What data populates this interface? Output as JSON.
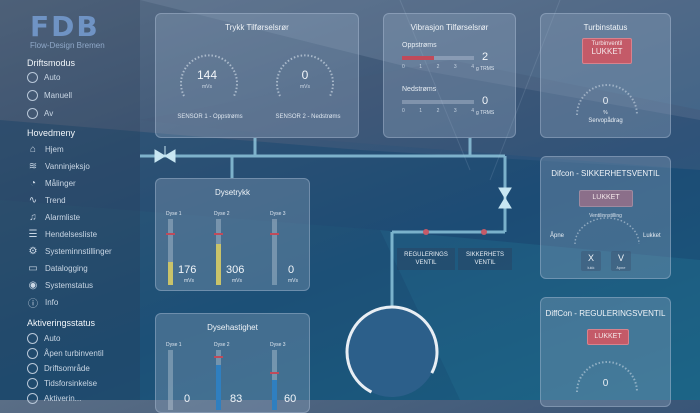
{
  "logo": {
    "text": "FDB",
    "subtitle": "Flow-Design Bremen"
  },
  "sidebar": {
    "mode_title": "Driftsmodus",
    "modes": [
      "Auto",
      "Manuell",
      "Av"
    ],
    "menu_title": "Hovedmeny",
    "menu": [
      {
        "label": "Hjem",
        "icon": "home-icon"
      },
      {
        "label": "Vanninjeksjo",
        "icon": "water-icon"
      },
      {
        "label": "Målinger",
        "icon": "gauge-icon"
      },
      {
        "label": "Trend",
        "icon": "trend-icon"
      },
      {
        "label": "Alarmliste",
        "icon": "bell-icon"
      },
      {
        "label": "Hendelsesliste",
        "icon": "list-icon"
      },
      {
        "label": "Systeminnstillinger",
        "icon": "gear-icon"
      },
      {
        "label": "Datalogging",
        "icon": "folder-icon"
      },
      {
        "label": "Systemstatus",
        "icon": "status-icon"
      },
      {
        "label": "Info",
        "icon": "info-icon"
      }
    ],
    "activation_title": "Aktiveringsstatus",
    "activation": [
      "Auto",
      "Åpen turbinventil",
      "Driftsområde",
      "Tidsforsinkelse",
      "Aktiverin..."
    ]
  },
  "pressure_card": {
    "title": "Trykk Tilførselsrør",
    "gauges": [
      {
        "value": "144",
        "unit": "mVs",
        "label": "SENSOR 1 - Oppstrøms"
      },
      {
        "value": "0",
        "unit": "mVs",
        "label": "SENSOR 2 - Nedstrøms"
      }
    ]
  },
  "vibration_card": {
    "title": "Vibrasjon Tilførselsrør",
    "rows": [
      {
        "label": "Oppstrøms",
        "value": "2",
        "unit": "g TRMS",
        "fill": 0.45,
        "ticks": [
          "0",
          "1",
          "2",
          "3",
          "4"
        ]
      },
      {
        "label": "Nedstrøms",
        "value": "0",
        "unit": "g TRMS",
        "fill": 0.0,
        "ticks": [
          "0",
          "1",
          "2",
          "3",
          "4"
        ]
      }
    ]
  },
  "turbine_card": {
    "title": "Turbinstatus",
    "valve_label": "Turbinventil",
    "status": "LUKKET",
    "value": "0",
    "unit": "%",
    "caption": "Servopådrag"
  },
  "nozzle_pressure_card": {
    "title": "Dysetrykk",
    "bars": [
      {
        "label": "Dyse 1",
        "value": "176",
        "unit": "mVs",
        "fill": 0.35,
        "color": "#c9c36a"
      },
      {
        "label": "Dyse 2",
        "value": "306",
        "unit": "mVs",
        "fill": 0.62,
        "color": "#c9c36a"
      },
      {
        "label": "Dyse 3",
        "value": "0",
        "unit": "mVs",
        "fill": 0.0,
        "color": "#c9c36a"
      }
    ]
  },
  "nozzle_speed_card": {
    "title": "Dysehastighet",
    "bars": [
      {
        "label": "Dyse 1",
        "value": "0",
        "unit": "",
        "fill": 0.0,
        "color": "#2f7fc0"
      },
      {
        "label": "Dyse 2",
        "value": "83",
        "unit": "",
        "fill": 0.75,
        "color": "#2f7fc0"
      },
      {
        "label": "Dyse 3",
        "value": "60",
        "unit": "",
        "fill": 0.5,
        "color": "#2f7fc0"
      }
    ]
  },
  "safety_card": {
    "title": "Difcon - SIKKERHETSVENTIL",
    "status": "LUKKET",
    "setting_label": "Ventilinnstilling",
    "open_label": "Åpne",
    "closed_label": "Lukket",
    "x_btn": {
      "label": "X",
      "sub": "lukk"
    },
    "v_btn": {
      "label": "V",
      "sub": "åpne"
    }
  },
  "regulating_card": {
    "title": "DiffCon - REGULERINGSVENTIL",
    "status": "LUKKET",
    "value": "0"
  },
  "pipe_labels": {
    "regulating": "REGULERINGS VENTIL",
    "safety": "SIKKERHETS VENTIL"
  },
  "colors": {
    "accent_red": "#c45a68",
    "pipe": "#9ad3e8",
    "bar_yellow": "#c9c36a",
    "bar_blue": "#2f7fc0"
  }
}
